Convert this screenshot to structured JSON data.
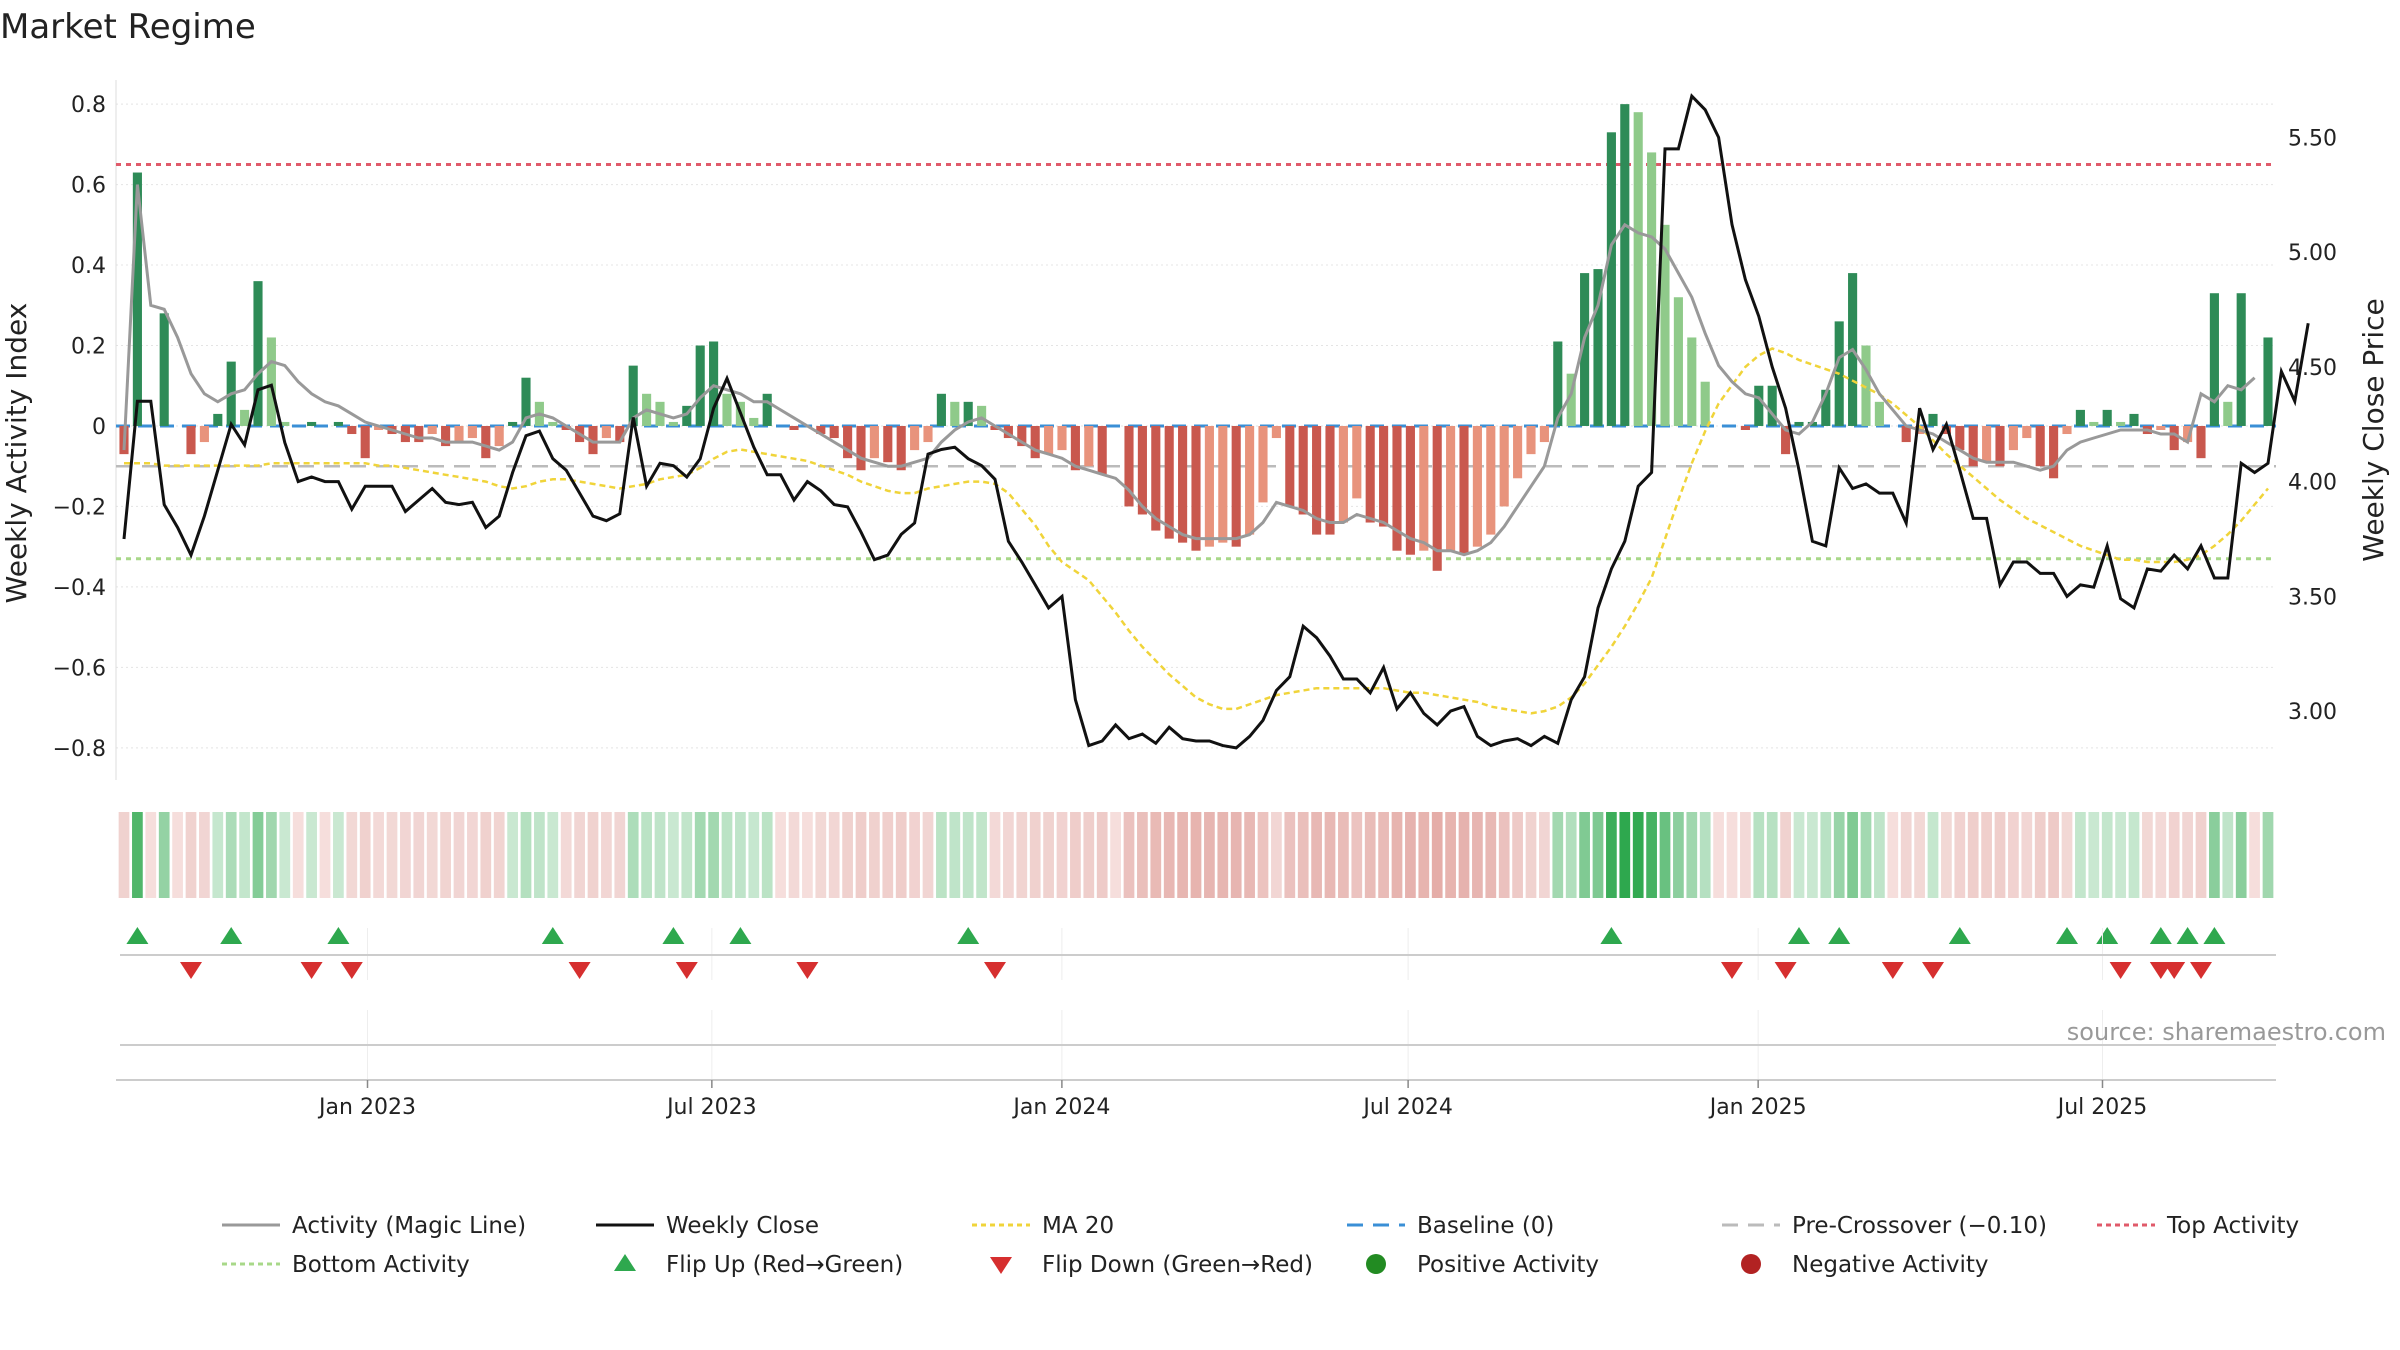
{
  "chart_data": {
    "type": "bar",
    "title": "Market Regime",
    "y_left_label": "Weekly Activity Index",
    "y_right_label": "Weekly Close Price",
    "y_left_ticks": [
      "0.8",
      "0.6",
      "0.4",
      "0.2",
      "0",
      "−0.2",
      "−0.4",
      "−0.6",
      "−0.8"
    ],
    "y_left_tick_values": [
      0.8,
      0.6,
      0.4,
      0.2,
      0,
      -0.2,
      -0.4,
      -0.6,
      -0.8
    ],
    "y_right_ticks": [
      "5.50",
      "5.00",
      "4.50",
      "4.00",
      "3.50",
      "3.00"
    ],
    "y_right_tick_values": [
      5.5,
      5.0,
      4.5,
      4.0,
      3.5,
      3.0
    ],
    "ylim_left": [
      -0.88,
      0.86
    ],
    "ylim_right": [
      2.7,
      5.75
    ],
    "x_ticks": [
      "Jan 2023",
      "Jul 2023",
      "Jan 2024",
      "Jul 2024",
      "Jan 2025",
      "Jul 2025"
    ],
    "x_tick_dates": [
      "2023-01-01",
      "2023-07-01",
      "2024-01-01",
      "2024-07-01",
      "2025-01-01",
      "2025-07-01"
    ],
    "date_range": [
      "2022-08-26",
      "2025-09-26"
    ],
    "levels": {
      "top": 0.65,
      "bottom": -0.33,
      "pre_crossover": -0.1,
      "baseline": 0
    },
    "colors": {
      "up_strong": "#2e8b57",
      "up_weak": "#8fca8a",
      "down_strong": "#c9584e",
      "down_weak": "#e8937c",
      "magic": "#999999",
      "close": "#111111",
      "ma": "#f0d43a",
      "baseline": "#3a8fd6",
      "pre": "#bbbbbb",
      "top": "#e05a6a",
      "bottom": "#a8d889",
      "flip_up": "#2ea84e",
      "flip_down": "#d62f2f",
      "pos": "#228b22",
      "neg": "#b22222"
    },
    "activity": [
      -0.07,
      0.63,
      0,
      0.28,
      0,
      -0.07,
      -0.04,
      0.03,
      0.16,
      0.04,
      0.36,
      0.22,
      0.01,
      0,
      0.01,
      0,
      0.01,
      -0.02,
      -0.08,
      -0.01,
      -0.02,
      -0.04,
      -0.04,
      -0.02,
      -0.05,
      -0.04,
      -0.03,
      -0.08,
      -0.05,
      0.01,
      0.12,
      0.06,
      0.01,
      -0.01,
      -0.04,
      -0.07,
      -0.03,
      -0.04,
      0.15,
      0.08,
      0.06,
      0.01,
      0.05,
      0.2,
      0.21,
      0.08,
      0.06,
      0.02,
      0.08,
      0,
      -0.01,
      0,
      -0.02,
      -0.03,
      -0.08,
      -0.11,
      -0.08,
      -0.09,
      -0.11,
      -0.06,
      -0.04,
      0.08,
      0.06,
      0.06,
      0.05,
      -0.01,
      -0.03,
      -0.05,
      -0.08,
      -0.07,
      -0.06,
      -0.11,
      -0.1,
      -0.12,
      0,
      -0.2,
      -0.22,
      -0.26,
      -0.28,
      -0.29,
      -0.31,
      -0.3,
      -0.29,
      -0.3,
      -0.27,
      -0.19,
      -0.03,
      -0.2,
      -0.22,
      -0.27,
      -0.27,
      -0.24,
      -0.18,
      -0.24,
      -0.25,
      -0.31,
      -0.32,
      -0.31,
      -0.36,
      -0.31,
      -0.32,
      -0.3,
      -0.27,
      -0.2,
      -0.13,
      -0.07,
      -0.04,
      0.21,
      0.13,
      0.38,
      0.39,
      0.73,
      0.8,
      0.78,
      0.68,
      0.5,
      0.32,
      0.22,
      0.11,
      0,
      0,
      -0.01,
      0.1,
      0.1,
      -0.07,
      0.01,
      0.01,
      0.09,
      0.26,
      0.38,
      0.2,
      0.06,
      0,
      -0.04,
      -0.02,
      0.03,
      -0.02,
      -0.06,
      -0.1,
      -0.09,
      -0.1,
      -0.06,
      -0.03,
      -0.1,
      -0.13,
      -0.02,
      0.04,
      0.01,
      0.04,
      0.01,
      0.03,
      -0.02,
      -0.01,
      -0.06,
      -0.04,
      -0.08,
      0.33,
      0.06,
      0.33,
      0,
      0.22
    ],
    "activity_magic": [
      -0.06,
      0.6,
      0.3,
      0.29,
      0.22,
      0.13,
      0.08,
      0.06,
      0.08,
      0.09,
      0.13,
      0.16,
      0.15,
      0.11,
      0.08,
      0.06,
      0.05,
      0.03,
      0.01,
      0.0,
      -0.01,
      -0.02,
      -0.03,
      -0.03,
      -0.04,
      -0.04,
      -0.04,
      -0.05,
      -0.06,
      -0.04,
      0.02,
      0.03,
      0.02,
      0.0,
      -0.02,
      -0.04,
      -0.04,
      -0.04,
      0.02,
      0.04,
      0.03,
      0.02,
      0.03,
      0.07,
      0.1,
      0.09,
      0.08,
      0.06,
      0.06,
      0.04,
      0.02,
      0.0,
      -0.02,
      -0.04,
      -0.06,
      -0.08,
      -0.09,
      -0.1,
      -0.1,
      -0.09,
      -0.08,
      -0.04,
      -0.01,
      0.01,
      0.02,
      0.0,
      -0.02,
      -0.04,
      -0.06,
      -0.07,
      -0.08,
      -0.1,
      -0.11,
      -0.12,
      -0.13,
      -0.16,
      -0.2,
      -0.23,
      -0.25,
      -0.27,
      -0.28,
      -0.28,
      -0.28,
      -0.28,
      -0.27,
      -0.24,
      -0.19,
      -0.2,
      -0.21,
      -0.23,
      -0.24,
      -0.24,
      -0.22,
      -0.23,
      -0.24,
      -0.26,
      -0.28,
      -0.29,
      -0.31,
      -0.31,
      -0.32,
      -0.31,
      -0.29,
      -0.25,
      -0.2,
      -0.15,
      -0.1,
      0.02,
      0.08,
      0.22,
      0.3,
      0.45,
      0.5,
      0.48,
      0.47,
      0.44,
      0.38,
      0.32,
      0.23,
      0.15,
      0.11,
      0.08,
      0.07,
      0.03,
      -0.01,
      -0.02,
      0.01,
      0.08,
      0.17,
      0.19,
      0.14,
      0.08,
      0.04,
      0.0,
      -0.01,
      -0.02,
      -0.04,
      -0.06,
      -0.08,
      -0.09,
      -0.09,
      -0.09,
      -0.1,
      -0.11,
      -0.1,
      -0.06,
      -0.04,
      -0.03,
      -0.02,
      -0.01,
      -0.01,
      -0.01,
      -0.02,
      -0.02,
      -0.04,
      0.08,
      0.06,
      0.1,
      0.09,
      0.12
    ],
    "close": [
      3.75,
      4.35,
      4.35,
      3.9,
      3.8,
      3.68,
      3.85,
      4.05,
      4.25,
      4.16,
      4.4,
      4.42,
      4.17,
      4.0,
      4.02,
      4.0,
      4.0,
      3.88,
      3.98,
      3.98,
      3.98,
      3.87,
      3.92,
      3.97,
      3.91,
      3.9,
      3.91,
      3.8,
      3.85,
      4.04,
      4.2,
      4.22,
      4.1,
      4.05,
      3.95,
      3.85,
      3.83,
      3.86,
      4.28,
      3.98,
      4.08,
      4.07,
      4.02,
      4.1,
      4.32,
      4.45,
      4.3,
      4.15,
      4.03,
      4.03,
      3.92,
      4.0,
      3.96,
      3.9,
      3.89,
      3.78,
      3.66,
      3.68,
      3.77,
      3.82,
      4.12,
      4.14,
      4.15,
      4.1,
      4.07,
      4.01,
      3.74,
      3.65,
      3.55,
      3.45,
      3.5,
      3.05,
      2.85,
      2.87,
      2.94,
      2.88,
      2.9,
      2.86,
      2.93,
      2.88,
      2.87,
      2.87,
      2.85,
      2.84,
      2.89,
      2.96,
      3.09,
      3.15,
      3.37,
      3.32,
      3.24,
      3.14,
      3.14,
      3.08,
      3.19,
      3.01,
      3.08,
      2.99,
      2.94,
      3.0,
      3.02,
      2.89,
      2.85,
      2.87,
      2.88,
      2.85,
      2.89,
      2.86,
      3.05,
      3.15,
      3.45,
      3.62,
      3.74,
      3.98,
      4.04,
      5.45,
      5.45,
      5.68,
      5.62,
      5.5,
      5.12,
      4.88,
      4.72,
      4.5,
      4.32,
      4.05,
      3.74,
      3.72,
      4.06,
      3.97,
      3.99,
      3.95,
      3.95,
      3.82,
      4.32,
      4.14,
      4.25,
      4.05,
      3.84,
      3.84,
      3.55,
      3.65,
      3.65,
      3.6,
      3.6,
      3.5,
      3.55,
      3.54,
      3.72,
      3.49,
      3.45,
      3.62,
      3.61,
      3.68,
      3.62,
      3.72,
      3.58,
      3.58,
      4.08,
      4.04,
      4.08,
      4.48,
      4.35,
      4.69
    ],
    "ma20": [
      4.08,
      4.08,
      4.08,
      4.07,
      4.07,
      4.07,
      4.07,
      4.07,
      4.07,
      4.07,
      4.07,
      4.08,
      4.08,
      4.08,
      4.08,
      4.08,
      4.08,
      4.08,
      4.08,
      4.07,
      4.07,
      4.06,
      4.05,
      4.04,
      4.03,
      4.02,
      4.01,
      4.0,
      3.98,
      3.97,
      3.98,
      4.0,
      4.01,
      4.01,
      4.0,
      3.99,
      3.98,
      3.97,
      3.98,
      3.99,
      4.01,
      4.02,
      4.03,
      4.06,
      4.1,
      4.13,
      4.14,
      4.13,
      4.12,
      4.11,
      4.1,
      4.09,
      4.07,
      4.05,
      4.03,
      4.0,
      3.98,
      3.96,
      3.95,
      3.95,
      3.97,
      3.98,
      3.99,
      4.0,
      4.0,
      3.99,
      3.95,
      3.88,
      3.81,
      3.72,
      3.65,
      3.61,
      3.57,
      3.5,
      3.43,
      3.35,
      3.28,
      3.22,
      3.16,
      3.11,
      3.06,
      3.03,
      3.01,
      3.01,
      3.03,
      3.05,
      3.07,
      3.08,
      3.09,
      3.1,
      3.1,
      3.1,
      3.1,
      3.1,
      3.1,
      3.09,
      3.08,
      3.08,
      3.07,
      3.06,
      3.05,
      3.04,
      3.02,
      3.01,
      3.0,
      2.99,
      3.0,
      3.02,
      3.06,
      3.12,
      3.2,
      3.28,
      3.37,
      3.47,
      3.58,
      3.75,
      3.92,
      4.08,
      4.22,
      4.34,
      4.42,
      4.5,
      4.55,
      4.58,
      4.56,
      4.53,
      4.51,
      4.49,
      4.47,
      4.44,
      4.41,
      4.38,
      4.34,
      4.29,
      4.24,
      4.18,
      4.12,
      4.07,
      4.02,
      3.97,
      3.92,
      3.88,
      3.84,
      3.81,
      3.78,
      3.75,
      3.72,
      3.7,
      3.68,
      3.66,
      3.66,
      3.65,
      3.65,
      3.65,
      3.66,
      3.68,
      3.72,
      3.77,
      3.83,
      3.9,
      3.97
    ],
    "flip_up_idx": [
      1,
      8,
      16,
      32,
      41,
      46,
      63,
      111,
      125,
      128,
      137,
      145,
      148,
      152,
      154,
      156
    ],
    "flip_down_idx": [
      5,
      14,
      17,
      34,
      42,
      51,
      65,
      120,
      124,
      132,
      135,
      149,
      152,
      153,
      155
    ],
    "legend": [
      "Activity (Magic Line)",
      "Weekly Close",
      "MA 20",
      "Baseline (0)",
      "Pre-Crossover (−0.10)",
      "Top Activity",
      "Bottom Activity",
      "Flip Up (Red→Green)",
      "Flip Down (Green→Red)",
      "Positive Activity",
      "Negative Activity"
    ],
    "source": "source: sharemaestro.com"
  }
}
